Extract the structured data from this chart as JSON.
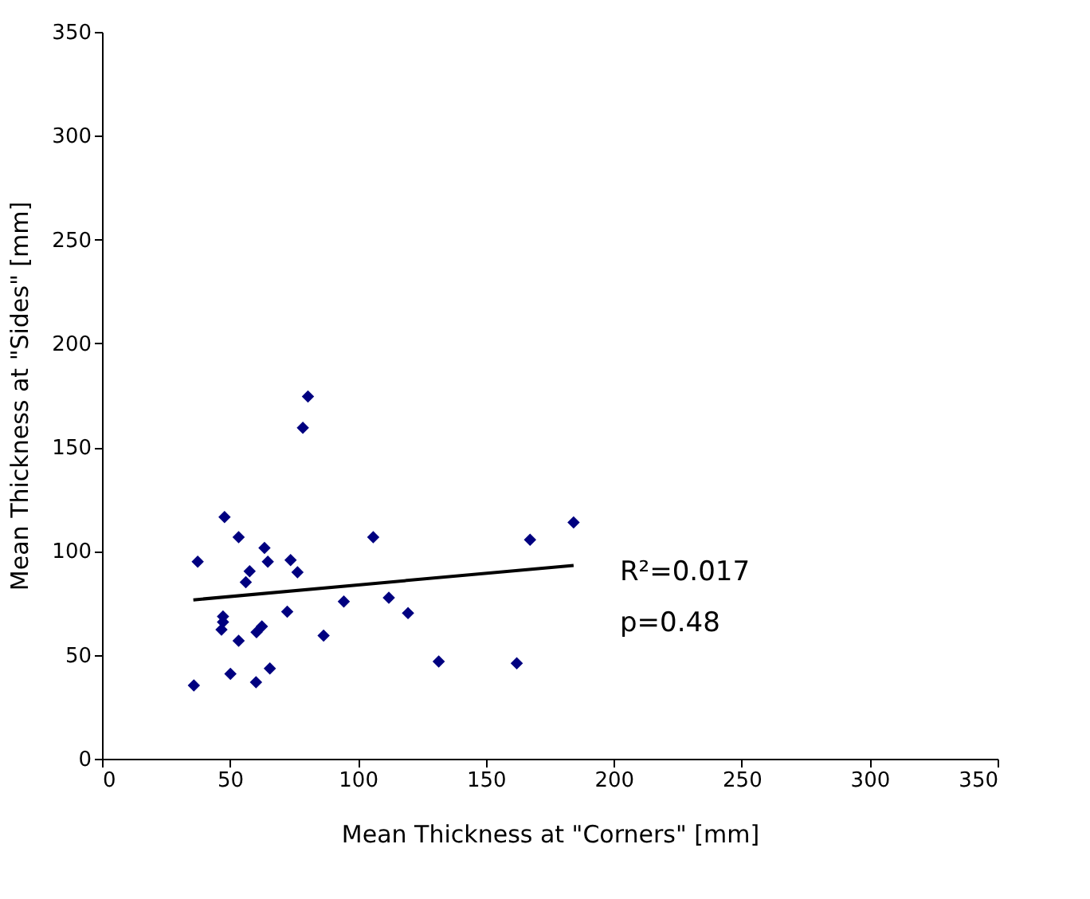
{
  "chart_data": {
    "type": "scatter",
    "xlabel": "Mean Thickness at \"Corners\" [mm]",
    "ylabel": "Mean Thickness at \"Sides\" [mm]",
    "xlim": [
      0,
      350
    ],
    "ylim": [
      0,
      350
    ],
    "xticks": [
      0,
      50,
      100,
      150,
      200,
      250,
      300,
      350
    ],
    "yticks": [
      0,
      50,
      100,
      150,
      200,
      250,
      300,
      350
    ],
    "grid": false,
    "series": [
      {
        "color": "#000080",
        "marker": "diamond",
        "x": [
          80.5,
          78.5,
          47.9,
          53.4,
          106.0,
          63.5,
          37.4,
          64.8,
          73.7,
          76.4,
          57.7,
          56.2,
          72.4,
          94.5,
          112.1,
          119.6,
          47.3,
          47.3,
          46.7,
          62.5,
          60.4,
          53.4,
          86.6,
          131.6,
          50.2,
          65.6,
          60.2,
          35.9,
          184.3,
          167.3,
          162.1
        ],
        "values": [
          174.4,
          159.4,
          116.4,
          106.7,
          106.7,
          101.5,
          94.9,
          94.9,
          95.7,
          89.8,
          90.3,
          85.0,
          70.8,
          75.7,
          77.5,
          70.1,
          68.5,
          65.8,
          62.2,
          63.7,
          60.9,
          56.8,
          59.3,
          46.8,
          40.9,
          43.5,
          36.8,
          35.3,
          113.8,
          105.4,
          46.0
        ]
      },
      {
        "type": "line",
        "color": "#000000",
        "line_style": "solid",
        "marker": "none",
        "x": [
          35.7,
          184.3
        ],
        "values": [
          76.5,
          93.1
        ]
      }
    ],
    "annotations": [
      "R²=0.017",
      "p=0.48"
    ]
  }
}
